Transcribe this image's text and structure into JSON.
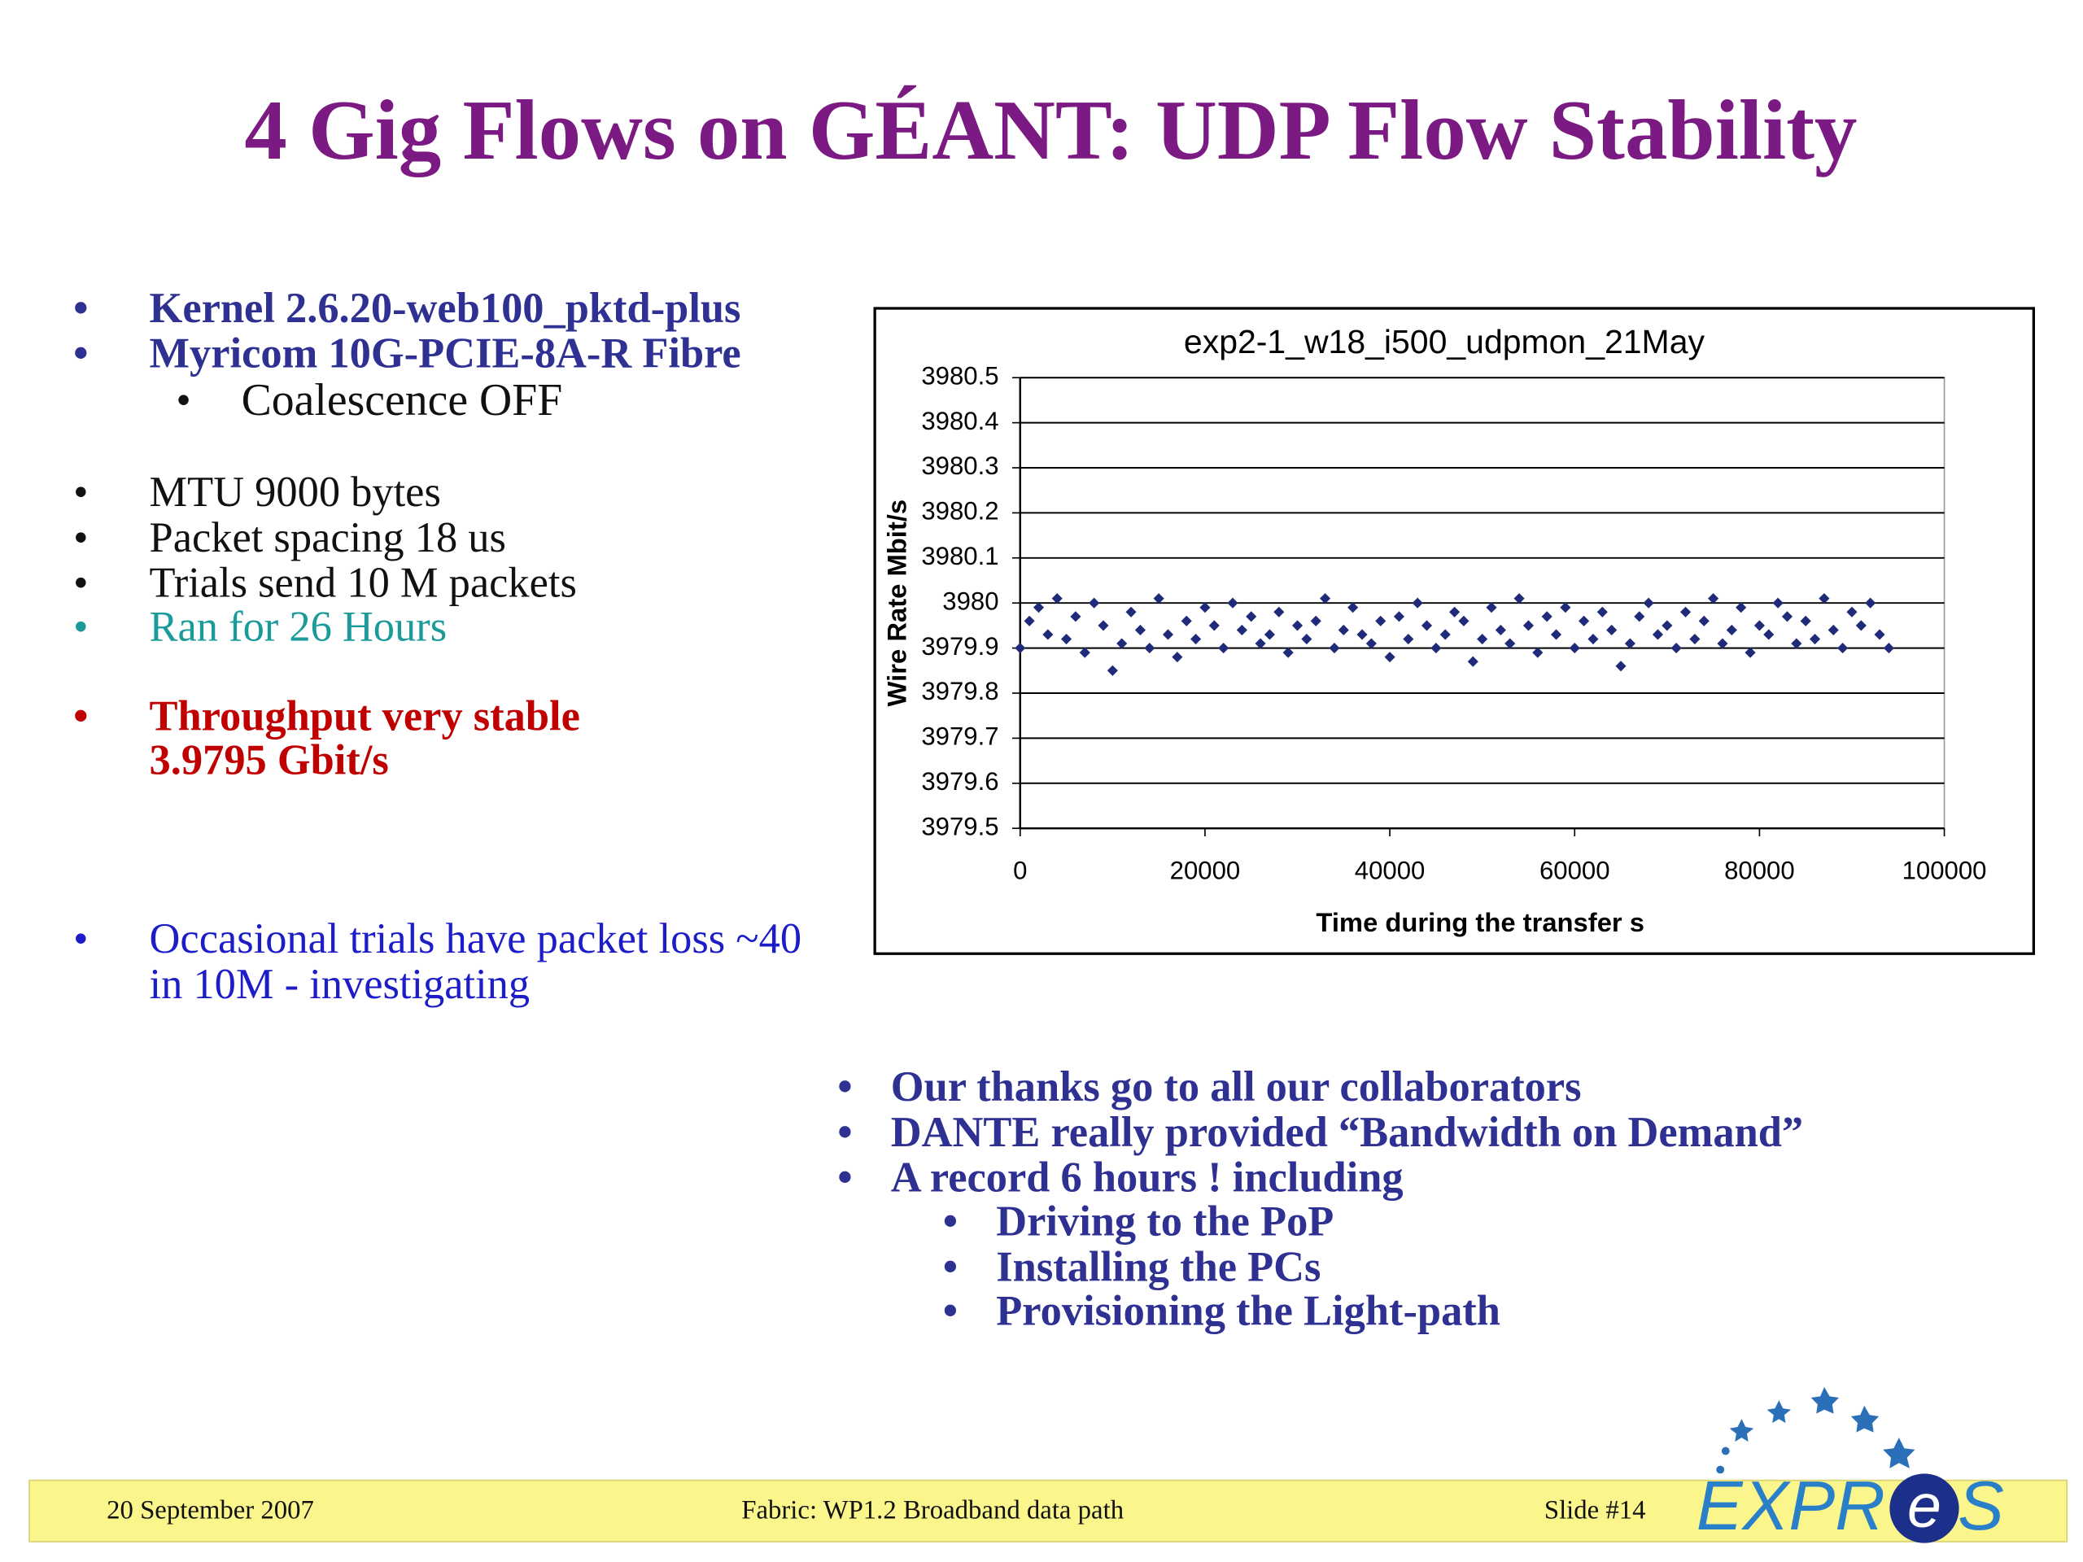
{
  "title": "4 Gig Flows on GÉANT: UDP Flow Stability",
  "left_bullets": [
    {
      "lines": [
        "Kernel  2.6.20-web100_pktd-plus"
      ]
    },
    {
      "lines": [
        "Myricom 10G-PCIE-8A-R Fibre"
      ]
    },
    {
      "lines": [
        "Coalescence OFF"
      ]
    },
    {
      "lines": [
        "MTU 9000 bytes"
      ]
    },
    {
      "lines": [
        "Packet spacing 18 us"
      ]
    },
    {
      "lines": [
        "Trials send 10 M packets"
      ]
    },
    {
      "lines": [
        "Ran for 26 Hours"
      ]
    },
    {
      "lines": [
        "Throughput very stable",
        "3.9795 Gbit/s"
      ]
    },
    {
      "lines": [
        "Occasional trials have packet loss ~40",
        "in 10M - investigating"
      ]
    }
  ],
  "right_bullets": [
    "Our thanks go to all our collaborators",
    "DANTE really provided “Bandwidth on Demand”",
    "A record 6 hours !  including",
    "Driving to the PoP",
    "Installing the PCs",
    "Provisioning the Light-path"
  ],
  "footer": {
    "date": "20 September 2007",
    "center": "Fabric: WP1.2 Broadband data path",
    "slide": "Slide #14"
  },
  "logo": [
    "EXPR",
    "e",
    "S"
  ],
  "chart_data": {
    "type": "scatter",
    "title": "exp2-1_w18_i500_udpmon_21May",
    "x_label": "Time during the transfer s",
    "y_label": "Wire Rate Mbit/s",
    "color": "#1f2a78",
    "grid": true,
    "xlim": [
      0,
      100000
    ],
    "xticks": [
      0,
      20000,
      40000,
      60000,
      80000,
      100000
    ],
    "ylim": [
      3979.5,
      3980.5
    ],
    "yticks": [
      3979.5,
      3979.6,
      3979.7,
      3979.8,
      3979.9,
      3980,
      3980.1,
      3980.2,
      3980.3,
      3980.4,
      3980.5
    ],
    "x": [
      0,
      1000,
      2000,
      3000,
      4000,
      5000,
      6000,
      7000,
      8000,
      9000,
      10000,
      11000,
      12000,
      13000,
      14000,
      15000,
      16000,
      17000,
      18000,
      19000,
      20000,
      21000,
      22000,
      23000,
      24000,
      25000,
      26000,
      27000,
      28000,
      29000,
      30000,
      31000,
      32000,
      33000,
      34000,
      35000,
      36000,
      37000,
      38000,
      39000,
      40000,
      41000,
      42000,
      43000,
      44000,
      45000,
      46000,
      47000,
      48000,
      49000,
      50000,
      51000,
      52000,
      53000,
      54000,
      55000,
      56000,
      57000,
      58000,
      59000,
      60000,
      61000,
      62000,
      63000,
      64000,
      65000,
      66000,
      67000,
      68000,
      69000,
      70000,
      71000,
      72000,
      73000,
      74000,
      75000,
      76000,
      77000,
      78000,
      79000,
      80000,
      81000,
      82000,
      83000,
      84000,
      85000,
      86000,
      87000,
      88000,
      89000,
      90000,
      91000,
      92000,
      93000,
      94000
    ],
    "values": [
      3979.9,
      3979.96,
      3979.99,
      3979.93,
      3980.01,
      3979.92,
      3979.97,
      3979.89,
      3980.0,
      3979.95,
      3979.85,
      3979.91,
      3979.98,
      3979.94,
      3979.9,
      3980.01,
      3979.93,
      3979.88,
      3979.96,
      3979.92,
      3979.99,
      3979.95,
      3979.9,
      3980.0,
      3979.94,
      3979.97,
      3979.91,
      3979.93,
      3979.98,
      3979.89,
      3979.95,
      3979.92,
      3979.96,
      3980.01,
      3979.9,
      3979.94,
      3979.99,
      3979.93,
      3979.91,
      3979.96,
      3979.88,
      3979.97,
      3979.92,
      3980.0,
      3979.95,
      3979.9,
      3979.93,
      3979.98,
      3979.96,
      3979.87,
      3979.92,
      3979.99,
      3979.94,
      3979.91,
      3980.01,
      3979.95,
      3979.89,
      3979.97,
      3979.93,
      3979.99,
      3979.9,
      3979.96,
      3979.92,
      3979.98,
      3979.94,
      3979.86,
      3979.91,
      3979.97,
      3980.0,
      3979.93,
      3979.95,
      3979.9,
      3979.98,
      3979.92,
      3979.96,
      3980.01,
      3979.91,
      3979.94,
      3979.99,
      3979.89,
      3979.95,
      3979.93,
      3980.0,
      3979.97,
      3979.91,
      3979.96,
      3979.92,
      3980.01,
      3979.94,
      3979.9,
      3979.98,
      3979.95,
      3980.0,
      3979.93,
      3979.9
    ]
  }
}
